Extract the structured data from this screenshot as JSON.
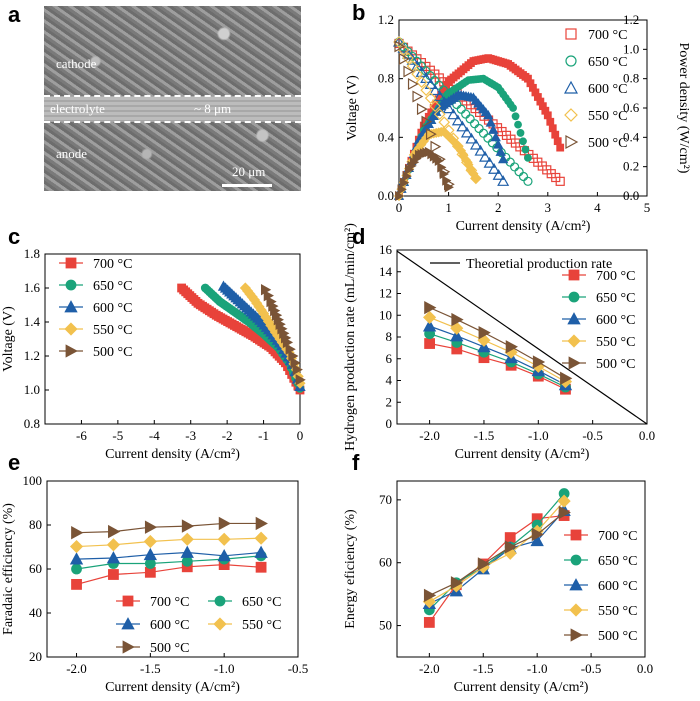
{
  "panel_labels": {
    "a": "a",
    "b": "b",
    "c": "c",
    "d": "d",
    "e": "e",
    "f": "f"
  },
  "micrograph": {
    "cathode_label": "cathode",
    "electrolyte_label": "electrolyte",
    "anode_label": "anode",
    "thickness_label": "~ 8 μm",
    "scale_label": "20 μm"
  },
  "colors": {
    "700": "#e8433a",
    "650": "#1aa37a",
    "600": "#1f5fa8",
    "550": "#f2c14e",
    "500": "#7a5436",
    "theory": "#000000"
  },
  "chart_data": [
    {
      "id": "b",
      "type": "line",
      "xlabel": "Current density (A/cm²)",
      "ylabel": "Voltage (V)",
      "y2label": "Power density (W/cm²)",
      "xlim": [
        0,
        5
      ],
      "ylim": [
        0,
        1.2
      ],
      "y2lim": [
        0,
        1.2
      ],
      "xticks": [
        "0",
        "1",
        "2",
        "3",
        "4",
        "5"
      ],
      "yticks": [
        "0.0",
        "0.4",
        "0.8",
        "1.2"
      ],
      "y2ticks": [
        "0.0",
        "0.2",
        "0.4",
        "0.6",
        "0.8",
        "1.0",
        "1.2"
      ],
      "legend_position": "right",
      "series": [
        {
          "name": "700 °C",
          "key": "700",
          "marker": "square",
          "voltage": {
            "x": [
              0,
              3.25
            ],
            "y": [
              1.04,
              0.1
            ]
          },
          "power": {
            "x": [
              0,
              0.5,
              1.0,
              1.5,
              1.8,
              2.2,
              2.6,
              3.0,
              3.25
            ],
            "y": [
              0,
              0.48,
              0.78,
              0.92,
              0.94,
              0.9,
              0.8,
              0.55,
              0.33
            ]
          }
        },
        {
          "name": "650 °C",
          "key": "650",
          "marker": "circle",
          "voltage": {
            "x": [
              0,
              2.6
            ],
            "y": [
              1.05,
              0.1
            ]
          },
          "power": {
            "x": [
              0,
              0.5,
              1.0,
              1.4,
              1.7,
              2.0,
              2.3,
              2.6
            ],
            "y": [
              0,
              0.45,
              0.7,
              0.79,
              0.8,
              0.74,
              0.6,
              0.26
            ]
          }
        },
        {
          "name": "600 °C",
          "key": "600",
          "marker": "triangle",
          "voltage": {
            "x": [
              0,
              2.1
            ],
            "y": [
              1.05,
              0.1
            ]
          },
          "power": {
            "x": [
              0,
              0.4,
              0.8,
              1.2,
              1.5,
              1.8,
              2.1
            ],
            "y": [
              0,
              0.38,
              0.6,
              0.69,
              0.67,
              0.55,
              0.25
            ]
          }
        },
        {
          "name": "550 °C",
          "key": "550",
          "marker": "diamond",
          "voltage": {
            "x": [
              0,
              1.55
            ],
            "y": [
              1.05,
              0.12
            ]
          },
          "power": {
            "x": [
              0,
              0.3,
              0.6,
              0.9,
              1.2,
              1.55
            ],
            "y": [
              0,
              0.28,
              0.42,
              0.44,
              0.34,
              0.12
            ]
          }
        },
        {
          "name": "500 °C",
          "key": "500",
          "marker": "tri-right",
          "voltage": {
            "x": [
              0,
              1.0
            ],
            "y": [
              1.02,
              0.08
            ]
          },
          "power": {
            "x": [
              0,
              0.2,
              0.4,
              0.6,
              0.8,
              1.0
            ],
            "y": [
              0,
              0.18,
              0.28,
              0.3,
              0.24,
              0.06
            ]
          }
        }
      ]
    },
    {
      "id": "c",
      "type": "line",
      "xlabel": "Current density (A/cm²)",
      "ylabel": "Voltage (V)",
      "xlim": [
        -7,
        0
      ],
      "ylim": [
        0.8,
        1.8
      ],
      "xticks": [
        "-6",
        "-5",
        "-4",
        "-3",
        "-2",
        "-1",
        "0"
      ],
      "yticks": [
        "0.8",
        "1.0",
        "1.2",
        "1.4",
        "1.6",
        "1.8"
      ],
      "legend_position": "top-left",
      "series": [
        {
          "name": "700 °C",
          "key": "700",
          "marker": "square",
          "x": [
            -3.25,
            -2.8,
            -2.3,
            -1.8,
            -1.3,
            -0.8,
            -0.4,
            0
          ],
          "y": [
            1.6,
            1.51,
            1.44,
            1.38,
            1.32,
            1.25,
            1.16,
            1.0
          ]
        },
        {
          "name": "650 °C",
          "key": "650",
          "marker": "circle",
          "x": [
            -2.6,
            -2.2,
            -1.8,
            -1.4,
            -1.0,
            -0.6,
            -0.3,
            0
          ],
          "y": [
            1.6,
            1.52,
            1.46,
            1.4,
            1.33,
            1.25,
            1.16,
            1.01
          ]
        },
        {
          "name": "600 °C",
          "key": "600",
          "marker": "triangle",
          "x": [
            -2.1,
            -1.7,
            -1.4,
            -1.1,
            -0.8,
            -0.5,
            -0.2,
            0
          ],
          "y": [
            1.61,
            1.53,
            1.47,
            1.41,
            1.34,
            1.26,
            1.15,
            1.02
          ]
        },
        {
          "name": "550 °C",
          "key": "550",
          "marker": "diamond",
          "x": [
            -1.5,
            -1.25,
            -1.0,
            -0.8,
            -0.55,
            -0.3,
            -0.1,
            0
          ],
          "y": [
            1.6,
            1.53,
            1.45,
            1.38,
            1.3,
            1.22,
            1.12,
            1.04
          ]
        },
        {
          "name": "500 °C",
          "key": "500",
          "marker": "tri-right",
          "x": [
            -0.95,
            -0.8,
            -0.65,
            -0.5,
            -0.35,
            -0.2,
            -0.08,
            0
          ],
          "y": [
            1.59,
            1.52,
            1.44,
            1.36,
            1.28,
            1.2,
            1.12,
            1.06
          ]
        }
      ]
    },
    {
      "id": "d",
      "type": "line",
      "xlabel": "Current density (A/cm²)",
      "ylabel": "Hydrogen production rate (mL/min/cm²)",
      "xlim": [
        -2.3,
        0
      ],
      "ylim": [
        0,
        16
      ],
      "xticks": [
        "-2.0",
        "-1.5",
        "-1.0",
        "-0.5",
        "0.0"
      ],
      "xtick_values": [
        -2.0,
        -1.5,
        -1.0,
        -0.5,
        0.0
      ],
      "yticks": [
        "0",
        "2",
        "4",
        "6",
        "8",
        "10",
        "12",
        "14",
        "16"
      ],
      "legend_position": "right",
      "theory": {
        "name": "Theoretial production rate",
        "x": [
          -2.3,
          0
        ],
        "y": [
          15.9,
          0
        ]
      },
      "x": [
        -2.0,
        -1.75,
        -1.5,
        -1.25,
        -1.0,
        -0.75
      ],
      "series": [
        {
          "name": "700 °C",
          "key": "700",
          "marker": "square",
          "y": [
            7.4,
            6.9,
            6.1,
            5.4,
            4.4,
            3.2
          ]
        },
        {
          "name": "650 °C",
          "key": "650",
          "marker": "circle",
          "y": [
            8.3,
            7.5,
            6.6,
            5.7,
            4.6,
            3.4
          ]
        },
        {
          "name": "600 °C",
          "key": "600",
          "marker": "triangle",
          "y": [
            9.0,
            8.1,
            7.1,
            6.1,
            4.9,
            3.6
          ]
        },
        {
          "name": "550 °C",
          "key": "550",
          "marker": "diamond",
          "y": [
            9.8,
            8.8,
            7.7,
            6.6,
            5.3,
            3.9
          ]
        },
        {
          "name": "500 °C",
          "key": "500",
          "marker": "tri-right",
          "y": [
            10.7,
            9.6,
            8.4,
            7.1,
            5.7,
            4.2
          ]
        }
      ]
    },
    {
      "id": "e",
      "type": "line",
      "xlabel": "Current density (A/cm²)",
      "ylabel": "Faradaic efficiency (%)",
      "xlim": [
        -2.2,
        -0.5
      ],
      "ylim": [
        20,
        100
      ],
      "xticks": [
        "-2.0",
        "-1.5",
        "-1.0",
        "-0.5"
      ],
      "xtick_values": [
        -2.0,
        -1.5,
        -1.0,
        -0.5
      ],
      "yticks": [
        "20",
        "40",
        "60",
        "80",
        "100"
      ],
      "legend_position": "bottom",
      "x": [
        -2.0,
        -1.75,
        -1.5,
        -1.25,
        -1.0,
        -0.75
      ],
      "series": [
        {
          "name": "700 °C",
          "key": "700",
          "marker": "square",
          "y": [
            53,
            57.5,
            58.5,
            61,
            62,
            60.8
          ]
        },
        {
          "name": "650 °C",
          "key": "650",
          "marker": "circle",
          "y": [
            60,
            62.5,
            62.5,
            63.5,
            64.5,
            66
          ]
        },
        {
          "name": "600 °C",
          "key": "600",
          "marker": "triangle",
          "y": [
            64.5,
            65,
            66.5,
            67.5,
            66,
            67.5
          ]
        },
        {
          "name": "550 °C",
          "key": "550",
          "marker": "diamond",
          "y": [
            70.2,
            71,
            72.5,
            73.5,
            73.5,
            74
          ]
        },
        {
          "name": "500 °C",
          "key": "500",
          "marker": "tri-right",
          "y": [
            76.5,
            77,
            79,
            79.5,
            80.7,
            80.7
          ]
        }
      ]
    },
    {
      "id": "f",
      "type": "line",
      "xlabel": "Current density (A/cm²)",
      "ylabel": "Energy eficiency (%)",
      "xlim": [
        -2.3,
        0
      ],
      "ylim": [
        45,
        73
      ],
      "xticks": [
        "-2.0",
        "-1.5",
        "-1.0",
        "-0.5",
        "0.0"
      ],
      "xtick_values": [
        -2.0,
        -1.5,
        -1.0,
        -0.5,
        0.0
      ],
      "yticks": [
        "50",
        "60",
        "70"
      ],
      "legend_position": "right",
      "x": [
        -2.0,
        -1.75,
        -1.5,
        -1.25,
        -1.0,
        -0.75
      ],
      "series": [
        {
          "name": "700 °C",
          "key": "700",
          "marker": "square",
          "y": [
            50.5,
            56.5,
            59.8,
            64,
            67,
            67.5
          ]
        },
        {
          "name": "650 °C",
          "key": "650",
          "marker": "circle",
          "y": [
            52.5,
            56.8,
            59.3,
            62.5,
            66,
            71
          ]
        },
        {
          "name": "600 °C",
          "key": "600",
          "marker": "triangle",
          "y": [
            53.5,
            55.5,
            59,
            62.3,
            63.5,
            68.3
          ]
        },
        {
          "name": "550 °C",
          "key": "550",
          "marker": "diamond",
          "y": [
            53.8,
            56.3,
            59.3,
            61.5,
            65,
            69.8
          ]
        },
        {
          "name": "500 °C",
          "key": "500",
          "marker": "tri-right",
          "y": [
            54.8,
            56.8,
            59.8,
            62.5,
            64.5,
            68
          ]
        }
      ]
    }
  ]
}
